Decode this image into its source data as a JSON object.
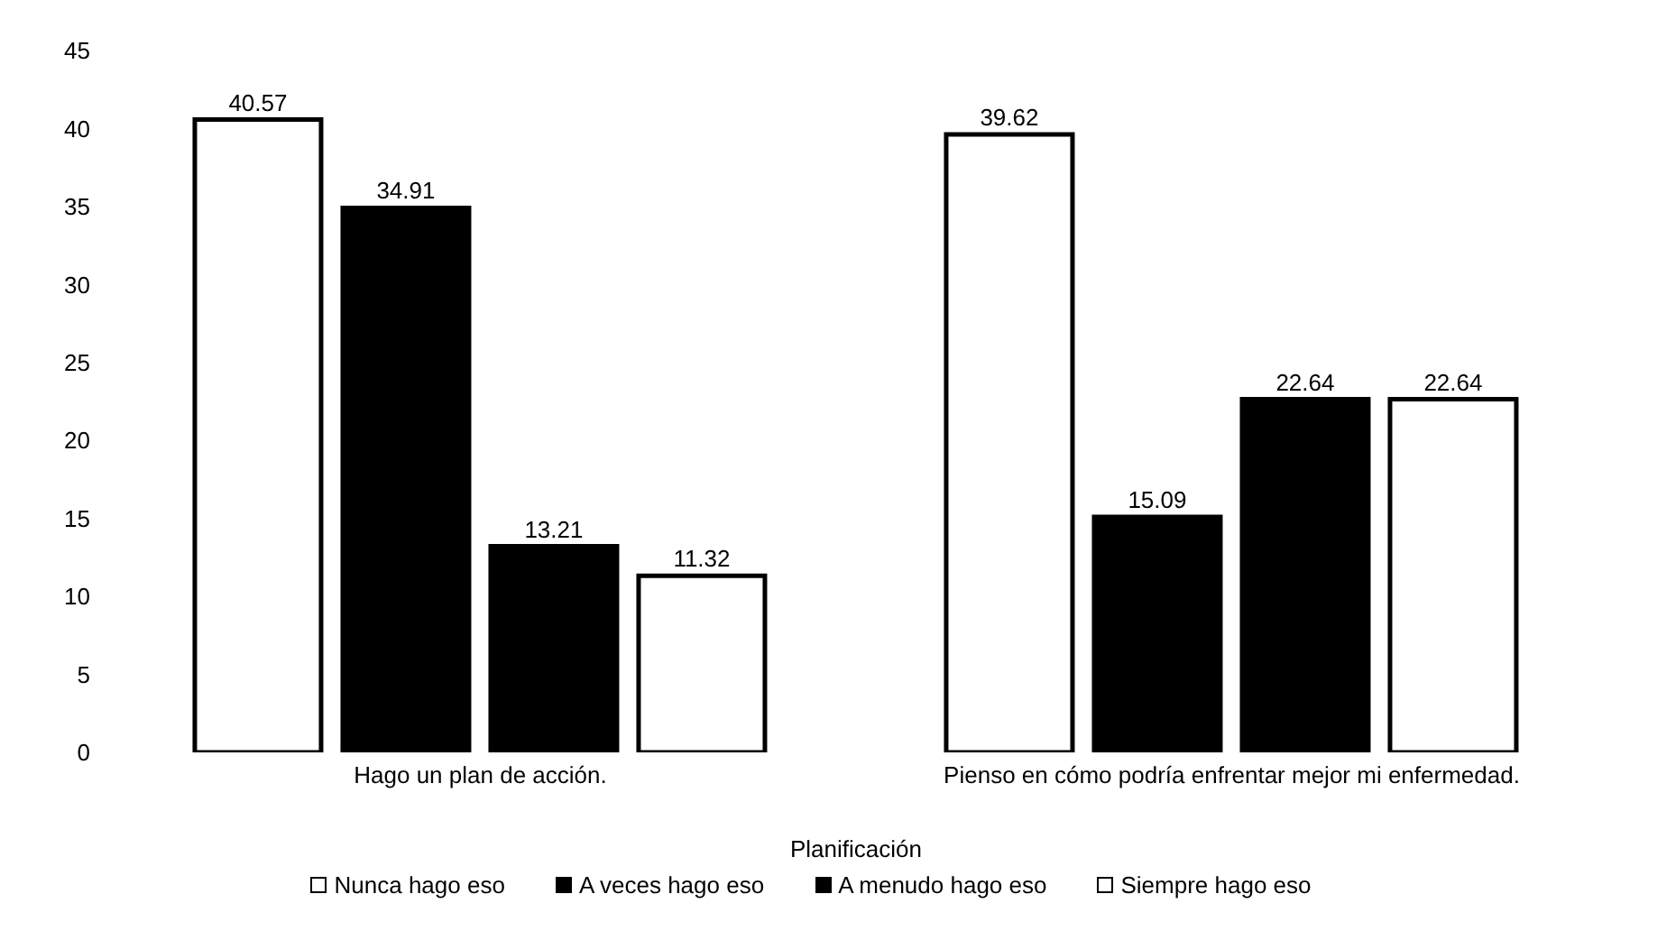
{
  "chart_data": {
    "type": "bar",
    "xlabel": "Planificación",
    "categories": [
      "Hago un plan de acción.",
      "Pienso en cómo podría enfrentar mejor mi enfermedad."
    ],
    "series": [
      {
        "name": "Nunca hago eso",
        "color": "#ffffff",
        "values": [
          40.57,
          39.62
        ]
      },
      {
        "name": "A veces hago eso",
        "color": "#000000",
        "values": [
          34.91,
          15.09
        ]
      },
      {
        "name": "A menudo hago eso",
        "color": "#000000",
        "values": [
          13.21,
          22.64
        ]
      },
      {
        "name": "Siempre hago eso",
        "color": "#ffffff",
        "values": [
          11.32,
          22.64
        ]
      }
    ],
    "ylim": [
      0,
      45
    ],
    "yticks": [
      0,
      5,
      10,
      15,
      20,
      25,
      30,
      35,
      40,
      45
    ],
    "data_labels": true,
    "grid": false,
    "legend": "bottom"
  }
}
